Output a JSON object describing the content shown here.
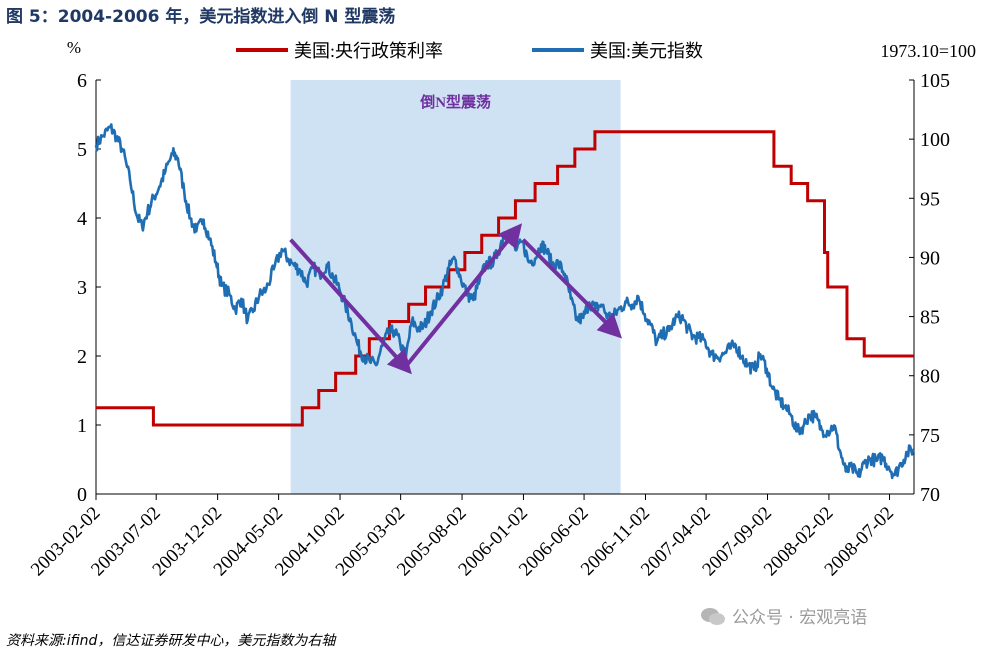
{
  "title": "图 5：2004-2006 年，美元指数进入倒 N 型震荡",
  "source": "资料来源:ifind，信达证券研发中心，美元指数为右轴",
  "watermark": "公众号 · 宏观亮语",
  "colors": {
    "policy_rate": "#c00000",
    "dollar_index": "#1f6eb4",
    "shade": "#cfe2f3",
    "arrow": "#7030a0",
    "title": "#1f3864"
  },
  "chart_data": {
    "type": "line",
    "left_unit": "%",
    "right_unit": "1973.10=100",
    "y_left": {
      "min": 0,
      "max": 6,
      "ticks": [
        "0",
        "1",
        "2",
        "3",
        "4",
        "5",
        "6"
      ]
    },
    "y_right": {
      "min": 70,
      "max": 105,
      "ticks": [
        "70",
        "75",
        "80",
        "85",
        "90",
        "95",
        "100",
        "105"
      ]
    },
    "x_range": [
      "2003-02-02",
      "2008-09-01"
    ],
    "x_ticks": [
      "2003-02-02",
      "2003-07-02",
      "2003-12-02",
      "2004-05-02",
      "2004-10-02",
      "2005-03-02",
      "2005-08-02",
      "2006-01-02",
      "2006-06-02",
      "2006-11-02",
      "2007-04-02",
      "2007-09-02",
      "2008-02-02",
      "2008-07-02"
    ],
    "shaded_period": {
      "start": "2004-06-01",
      "end": "2006-09-01",
      "label": "倒N型震荡"
    },
    "arrows": [
      {
        "from": [
          "2004-06-01",
          91.5
        ],
        "to": [
          "2005-03-20",
          80.5
        ]
      },
      {
        "from": [
          "2005-03-20",
          81.0
        ],
        "to": [
          "2005-12-20",
          92.5
        ]
      },
      {
        "from": [
          "2006-01-01",
          91.5
        ],
        "to": [
          "2006-08-25",
          83.5
        ]
      }
    ],
    "series": [
      {
        "name": "美国:央行政策利率",
        "axis": "left",
        "step": true,
        "points": [
          [
            "2003-02-02",
            1.25
          ],
          [
            "2003-06-25",
            1.0
          ],
          [
            "2004-06-30",
            1.25
          ],
          [
            "2004-08-10",
            1.5
          ],
          [
            "2004-09-21",
            1.75
          ],
          [
            "2004-11-10",
            2.0
          ],
          [
            "2004-12-14",
            2.25
          ],
          [
            "2005-02-02",
            2.5
          ],
          [
            "2005-03-22",
            2.75
          ],
          [
            "2005-05-03",
            3.0
          ],
          [
            "2005-06-30",
            3.25
          ],
          [
            "2005-08-09",
            3.5
          ],
          [
            "2005-09-20",
            3.75
          ],
          [
            "2005-11-01",
            4.0
          ],
          [
            "2005-12-13",
            4.25
          ],
          [
            "2006-01-31",
            4.5
          ],
          [
            "2006-03-28",
            4.75
          ],
          [
            "2006-05-10",
            5.0
          ],
          [
            "2006-06-29",
            5.25
          ],
          [
            "2007-09-18",
            4.75
          ],
          [
            "2007-10-31",
            4.5
          ],
          [
            "2007-12-11",
            4.25
          ],
          [
            "2008-01-22",
            3.5
          ],
          [
            "2008-01-30",
            3.0
          ],
          [
            "2008-03-18",
            2.25
          ],
          [
            "2008-04-30",
            2.0
          ],
          [
            "2008-09-01",
            2.0
          ]
        ]
      },
      {
        "name": "美国:美元指数",
        "axis": "right",
        "step": false,
        "points": [
          [
            "2003-02-02",
            99.5
          ],
          [
            "2003-02-20",
            100.3
          ],
          [
            "2003-03-10",
            101.0
          ],
          [
            "2003-03-25",
            100.2
          ],
          [
            "2003-04-10",
            99.0
          ],
          [
            "2003-04-28",
            96.5
          ],
          [
            "2003-05-15",
            93.5
          ],
          [
            "2003-05-28",
            92.6
          ],
          [
            "2003-06-10",
            93.8
          ],
          [
            "2003-06-25",
            95.0
          ],
          [
            "2003-07-10",
            96.0
          ],
          [
            "2003-07-25",
            97.3
          ],
          [
            "2003-08-12",
            98.8
          ],
          [
            "2003-08-25",
            98.4
          ],
          [
            "2003-09-10",
            95.5
          ],
          [
            "2003-09-25",
            93.3
          ],
          [
            "2003-10-10",
            92.2
          ],
          [
            "2003-10-28",
            93.2
          ],
          [
            "2003-11-12",
            91.6
          ],
          [
            "2003-11-28",
            89.6
          ],
          [
            "2003-12-12",
            87.6
          ],
          [
            "2003-12-31",
            86.9
          ],
          [
            "2004-01-15",
            85.6
          ],
          [
            "2004-01-30",
            86.5
          ],
          [
            "2004-02-15",
            84.7
          ],
          [
            "2004-03-01",
            85.6
          ],
          [
            "2004-03-15",
            86.8
          ],
          [
            "2004-04-01",
            87.3
          ],
          [
            "2004-04-20",
            89.0
          ],
          [
            "2004-05-10",
            90.7
          ],
          [
            "2004-05-25",
            89.9
          ],
          [
            "2004-06-10",
            89.3
          ],
          [
            "2004-06-25",
            88.9
          ],
          [
            "2004-07-10",
            87.8
          ],
          [
            "2004-07-28",
            89.1
          ],
          [
            "2004-08-12",
            88.6
          ],
          [
            "2004-08-30",
            89.4
          ],
          [
            "2004-09-15",
            88.3
          ],
          [
            "2004-09-30",
            87.4
          ],
          [
            "2004-10-15",
            86.0
          ],
          [
            "2004-10-30",
            84.5
          ],
          [
            "2004-11-15",
            82.6
          ],
          [
            "2004-11-30",
            81.6
          ],
          [
            "2004-12-15",
            81.2
          ],
          [
            "2004-12-31",
            80.9
          ],
          [
            "2005-01-15",
            82.5
          ],
          [
            "2005-01-30",
            83.6
          ],
          [
            "2005-02-15",
            83.8
          ],
          [
            "2005-03-01",
            82.7
          ],
          [
            "2005-03-15",
            81.6
          ],
          [
            "2005-03-30",
            84.6
          ],
          [
            "2005-04-15",
            84.0
          ],
          [
            "2005-04-30",
            84.2
          ],
          [
            "2005-05-15",
            85.4
          ],
          [
            "2005-05-30",
            86.3
          ],
          [
            "2005-06-15",
            87.5
          ],
          [
            "2005-06-30",
            89.1
          ],
          [
            "2005-07-15",
            89.9
          ],
          [
            "2005-07-30",
            88.2
          ],
          [
            "2005-08-15",
            86.9
          ],
          [
            "2005-08-30",
            86.4
          ],
          [
            "2005-09-15",
            88.1
          ],
          [
            "2005-09-30",
            89.4
          ],
          [
            "2005-10-15",
            89.6
          ],
          [
            "2005-10-30",
            90.3
          ],
          [
            "2005-11-15",
            92.1
          ],
          [
            "2005-11-30",
            91.6
          ],
          [
            "2005-12-15",
            90.6
          ],
          [
            "2005-12-31",
            91.3
          ],
          [
            "2006-01-15",
            89.6
          ],
          [
            "2006-01-31",
            89.9
          ],
          [
            "2006-02-15",
            91.1
          ],
          [
            "2006-02-28",
            90.6
          ],
          [
            "2006-03-15",
            89.4
          ],
          [
            "2006-03-30",
            89.5
          ],
          [
            "2006-04-15",
            88.6
          ],
          [
            "2006-04-30",
            86.5
          ],
          [
            "2006-05-15",
            84.7
          ],
          [
            "2006-05-31",
            84.9
          ],
          [
            "2006-06-15",
            86.2
          ],
          [
            "2006-06-30",
            85.7
          ],
          [
            "2006-07-15",
            86.0
          ],
          [
            "2006-07-31",
            85.0
          ],
          [
            "2006-08-15",
            85.1
          ],
          [
            "2006-08-31",
            85.7
          ],
          [
            "2006-09-15",
            86.2
          ],
          [
            "2006-09-30",
            86.0
          ],
          [
            "2006-10-15",
            86.7
          ],
          [
            "2006-10-31",
            85.2
          ],
          [
            "2006-11-15",
            84.3
          ],
          [
            "2006-11-30",
            82.8
          ],
          [
            "2006-12-15",
            83.5
          ],
          [
            "2006-12-31",
            83.8
          ],
          [
            "2007-01-15",
            84.8
          ],
          [
            "2007-01-31",
            85.0
          ],
          [
            "2007-02-15",
            84.0
          ],
          [
            "2007-02-28",
            83.3
          ],
          [
            "2007-03-15",
            83.2
          ],
          [
            "2007-03-31",
            82.9
          ],
          [
            "2007-04-15",
            81.8
          ],
          [
            "2007-04-30",
            81.6
          ],
          [
            "2007-05-15",
            81.8
          ],
          [
            "2007-05-31",
            82.3
          ],
          [
            "2007-06-15",
            82.6
          ],
          [
            "2007-06-30",
            81.6
          ],
          [
            "2007-07-15",
            80.9
          ],
          [
            "2007-07-31",
            80.5
          ],
          [
            "2007-08-15",
            81.8
          ],
          [
            "2007-08-31",
            80.6
          ],
          [
            "2007-09-15",
            78.9
          ],
          [
            "2007-09-30",
            78.0
          ],
          [
            "2007-10-15",
            77.4
          ],
          [
            "2007-10-31",
            76.6
          ],
          [
            "2007-11-15",
            75.3
          ],
          [
            "2007-11-30",
            75.7
          ],
          [
            "2007-12-15",
            76.7
          ],
          [
            "2007-12-31",
            76.5
          ],
          [
            "2008-01-15",
            75.4
          ],
          [
            "2008-01-31",
            75.3
          ],
          [
            "2008-02-15",
            75.8
          ],
          [
            "2008-02-29",
            73.7
          ],
          [
            "2008-03-15",
            71.9
          ],
          [
            "2008-03-31",
            72.2
          ],
          [
            "2008-04-15",
            71.5
          ],
          [
            "2008-04-30",
            72.6
          ],
          [
            "2008-05-15",
            73.0
          ],
          [
            "2008-05-31",
            72.8
          ],
          [
            "2008-06-15",
            73.1
          ],
          [
            "2008-06-30",
            72.3
          ],
          [
            "2008-07-15",
            71.6
          ],
          [
            "2008-07-31",
            72.6
          ],
          [
            "2008-08-15",
            73.5
          ],
          [
            "2008-09-01",
            73.8
          ]
        ]
      }
    ]
  }
}
